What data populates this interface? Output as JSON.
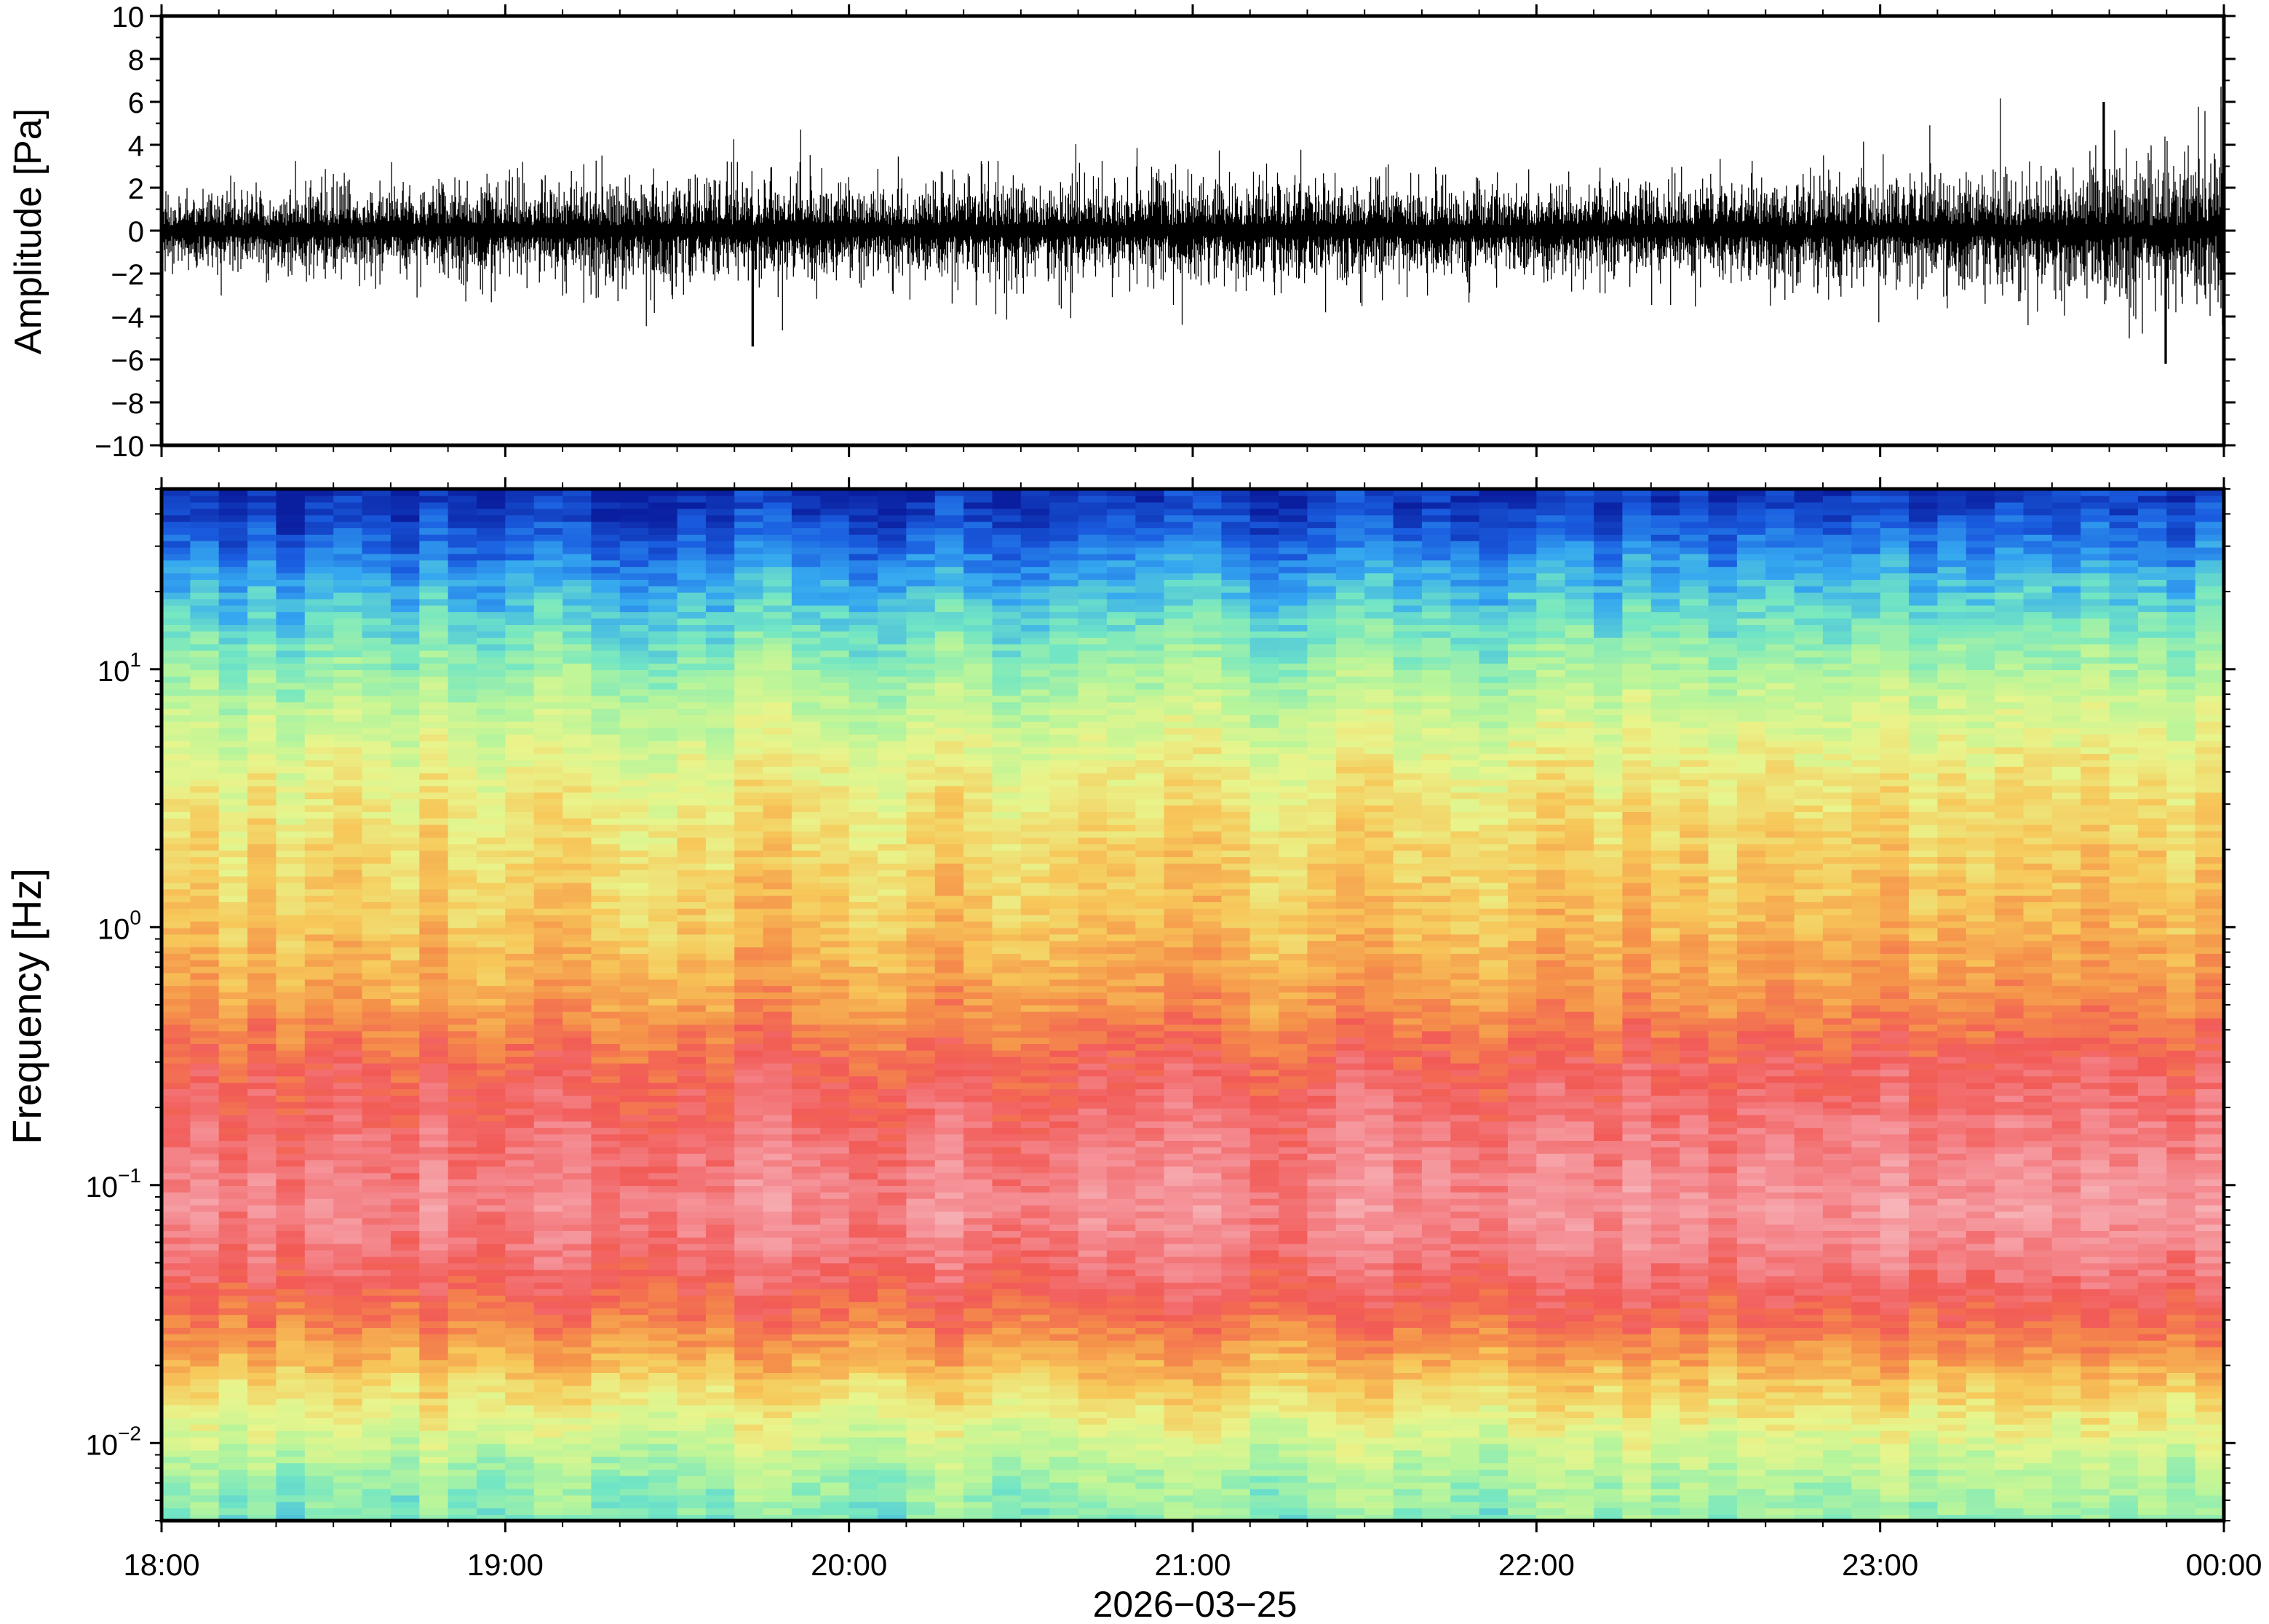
{
  "chart_data": [
    {
      "type": "line",
      "panel": "waveform",
      "ylabel": "Amplitude [Pa]",
      "ylim": [
        -10,
        10
      ],
      "yticks": [
        10,
        8,
        6,
        4,
        2,
        0,
        -2,
        -4,
        -6,
        -8,
        -10
      ],
      "ytick_labels": [
        "10",
        "8",
        "6",
        "4",
        "2",
        "0",
        "−2",
        "−4",
        "−6",
        "−8",
        "−10"
      ],
      "x_range": [
        "18:00",
        "00:00"
      ],
      "line_color": "#000000",
      "envelope_profile": {
        "hours_from_start": [
          0,
          0.5,
          1.0,
          1.5,
          2.0,
          2.5,
          3.0,
          3.5,
          4.0,
          4.5,
          5.0,
          5.5,
          6.0
        ],
        "typical_abs_amplitude": [
          1.4,
          1.6,
          2.0,
          2.1,
          2.0,
          2.1,
          2.2,
          2.0,
          1.8,
          2.0,
          2.2,
          2.6,
          3.3
        ]
      },
      "notable_peaks": [
        {
          "hours_from_start": 1.72,
          "amplitude": -5.4
        },
        {
          "hours_from_start": 5.65,
          "amplitude": 6.0
        },
        {
          "hours_from_start": 5.83,
          "amplitude": -6.2
        }
      ]
    },
    {
      "type": "heatmap",
      "panel": "spectrogram",
      "ylabel": "Frequency [Hz]",
      "y_scale": "log",
      "ylim_hz": [
        0.005,
        50
      ],
      "yticks_hz": [
        0.01,
        0.1,
        1,
        10
      ],
      "ytick_labels": [
        {
          "base": "10",
          "exp": "−2"
        },
        {
          "base": "10",
          "exp": "−1"
        },
        {
          "base": "10",
          "exp": "0"
        },
        {
          "base": "10",
          "exp": "1"
        }
      ],
      "xticks": [
        "18:00",
        "19:00",
        "20:00",
        "21:00",
        "22:00",
        "23:00",
        "00:00"
      ],
      "xlabel": "2026−03−25",
      "colormap_low_to_high": [
        "#0a1fa0",
        "#1a5de0",
        "#35a8f0",
        "#72e6c4",
        "#b8f59a",
        "#e8f58c",
        "#f7c85a",
        "#f5924a",
        "#f25a56",
        "#f48a90",
        "#f7b4b8"
      ],
      "band_profile": [
        {
          "hz": 45,
          "level": 0.02
        },
        {
          "hz": 30,
          "level": 0.12
        },
        {
          "hz": 20,
          "level": 0.22
        },
        {
          "hz": 12,
          "level": 0.32
        },
        {
          "hz": 7,
          "level": 0.42
        },
        {
          "hz": 4,
          "level": 0.5
        },
        {
          "hz": 2,
          "level": 0.56
        },
        {
          "hz": 1,
          "level": 0.6
        },
        {
          "hz": 0.5,
          "level": 0.68
        },
        {
          "hz": 0.3,
          "level": 0.78
        },
        {
          "hz": 0.15,
          "level": 0.85
        },
        {
          "hz": 0.08,
          "level": 0.9
        },
        {
          "hz": 0.05,
          "level": 0.84
        },
        {
          "hz": 0.03,
          "level": 0.74
        },
        {
          "hz": 0.02,
          "level": 0.62
        },
        {
          "hz": 0.012,
          "level": 0.48
        },
        {
          "hz": 0.008,
          "level": 0.38
        },
        {
          "hz": 0.005,
          "level": 0.32
        }
      ]
    }
  ]
}
